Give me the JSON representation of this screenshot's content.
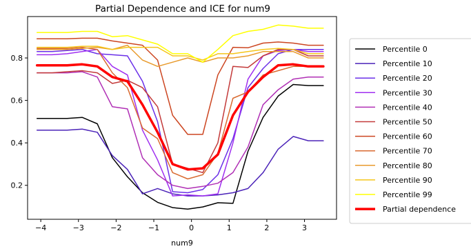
{
  "chart_data": {
    "type": "line",
    "title": "Partial Dependence and ICE for num9",
    "xlabel": "num9",
    "ylabel": "",
    "xlim": [
      -4.35,
      3.85
    ],
    "ylim": [
      0.04,
      0.995
    ],
    "xticks": [
      -4,
      -3,
      -2,
      -1,
      0,
      1,
      2,
      3
    ],
    "xtick_labels": [
      "−4",
      "−3",
      "−2",
      "−1",
      "0",
      "1",
      "2",
      "3"
    ],
    "yticks": [
      0.2,
      0.4,
      0.6,
      0.8
    ],
    "ytick_labels": [
      "0.2",
      "0.4",
      "0.6",
      "0.8"
    ],
    "grid": false,
    "legend_position": "right, outside plot",
    "x": [
      -4.1,
      -3.7,
      -3.3,
      -2.9,
      -2.5,
      -2.1,
      -1.7,
      -1.3,
      -0.9,
      -0.5,
      -0.1,
      0.3,
      0.7,
      1.1,
      1.5,
      1.9,
      2.3,
      2.7,
      3.1,
      3.5
    ],
    "series": [
      {
        "name": "Percentile 0",
        "color": "#000000",
        "width": 1.5,
        "values": [
          0.515,
          0.515,
          0.515,
          0.52,
          0.49,
          0.33,
          0.24,
          0.165,
          0.12,
          0.095,
          0.088,
          0.098,
          0.118,
          0.115,
          0.36,
          0.52,
          0.62,
          0.675,
          0.67,
          0.67
        ]
      },
      {
        "name": "Percentile 10",
        "color": "#4a22b8",
        "width": 1.5,
        "values": [
          0.46,
          0.46,
          0.46,
          0.465,
          0.45,
          0.34,
          0.275,
          0.16,
          0.185,
          0.16,
          0.15,
          0.15,
          0.155,
          0.165,
          0.185,
          0.26,
          0.37,
          0.43,
          0.41,
          0.41
        ]
      },
      {
        "name": "Percentile 20",
        "color": "#6a2fe8",
        "width": 1.5,
        "values": [
          0.83,
          0.83,
          0.835,
          0.84,
          0.82,
          0.815,
          0.81,
          0.69,
          0.5,
          0.17,
          0.165,
          0.18,
          0.25,
          0.42,
          0.66,
          0.75,
          0.82,
          0.84,
          0.84,
          0.84
        ]
      },
      {
        "name": "Percentile 30",
        "color": "#9f2ff0",
        "width": 1.5,
        "values": [
          0.815,
          0.815,
          0.82,
          0.83,
          0.84,
          0.76,
          0.72,
          0.46,
          0.32,
          0.15,
          0.155,
          0.15,
          0.16,
          0.4,
          0.7,
          0.81,
          0.835,
          0.84,
          0.83,
          0.83
        ]
      },
      {
        "name": "Percentile 40",
        "color": "#b02fb5",
        "width": 1.5,
        "values": [
          0.73,
          0.73,
          0.73,
          0.735,
          0.71,
          0.57,
          0.56,
          0.33,
          0.25,
          0.2,
          0.185,
          0.195,
          0.21,
          0.26,
          0.38,
          0.58,
          0.65,
          0.7,
          0.71,
          0.71
        ]
      },
      {
        "name": "Percentile 50",
        "color": "#c33a3a",
        "width": 1.5,
        "values": [
          0.73,
          0.73,
          0.735,
          0.74,
          0.73,
          0.68,
          0.695,
          0.66,
          0.57,
          0.3,
          0.28,
          0.26,
          0.4,
          0.76,
          0.755,
          0.81,
          0.84,
          0.84,
          0.81,
          0.81
        ]
      },
      {
        "name": "Percentile 60",
        "color": "#cc4520",
        "width": 1.5,
        "values": [
          0.89,
          0.89,
          0.89,
          0.893,
          0.893,
          0.88,
          0.87,
          0.86,
          0.79,
          0.53,
          0.44,
          0.44,
          0.72,
          0.85,
          0.848,
          0.87,
          0.875,
          0.87,
          0.86,
          0.86
        ]
      },
      {
        "name": "Percentile 70",
        "color": "#d96a30",
        "width": 1.5,
        "values": [
          0.845,
          0.845,
          0.845,
          0.85,
          0.84,
          0.73,
          0.66,
          0.47,
          0.42,
          0.26,
          0.23,
          0.25,
          0.35,
          0.61,
          0.64,
          0.72,
          0.74,
          0.76,
          0.76,
          0.76
        ]
      },
      {
        "name": "Percentile 80",
        "color": "#e89a2c",
        "width": 1.5,
        "values": [
          0.84,
          0.84,
          0.84,
          0.845,
          0.85,
          0.84,
          0.86,
          0.79,
          0.76,
          0.78,
          0.8,
          0.78,
          0.8,
          0.8,
          0.81,
          0.83,
          0.83,
          0.83,
          0.8,
          0.8
        ]
      },
      {
        "name": "Percentile 90",
        "color": "#f5c518",
        "width": 1.5,
        "values": [
          0.85,
          0.85,
          0.85,
          0.855,
          0.855,
          0.84,
          0.85,
          0.85,
          0.85,
          0.81,
          0.81,
          0.79,
          0.82,
          0.82,
          0.83,
          0.84,
          0.845,
          0.84,
          0.82,
          0.82
        ]
      },
      {
        "name": "Percentile 99",
        "color": "#ffff00",
        "width": 1.5,
        "values": [
          0.92,
          0.92,
          0.92,
          0.925,
          0.925,
          0.9,
          0.905,
          0.885,
          0.865,
          0.82,
          0.82,
          0.78,
          0.84,
          0.905,
          0.925,
          0.935,
          0.955,
          0.95,
          0.94,
          0.94
        ]
      },
      {
        "name": "Partial dependence",
        "color": "#ff0000",
        "width": 3.5,
        "values": [
          0.765,
          0.765,
          0.765,
          0.77,
          0.76,
          0.71,
          0.69,
          0.58,
          0.45,
          0.3,
          0.275,
          0.28,
          0.345,
          0.53,
          0.64,
          0.71,
          0.765,
          0.77,
          0.76,
          0.76
        ]
      }
    ]
  }
}
